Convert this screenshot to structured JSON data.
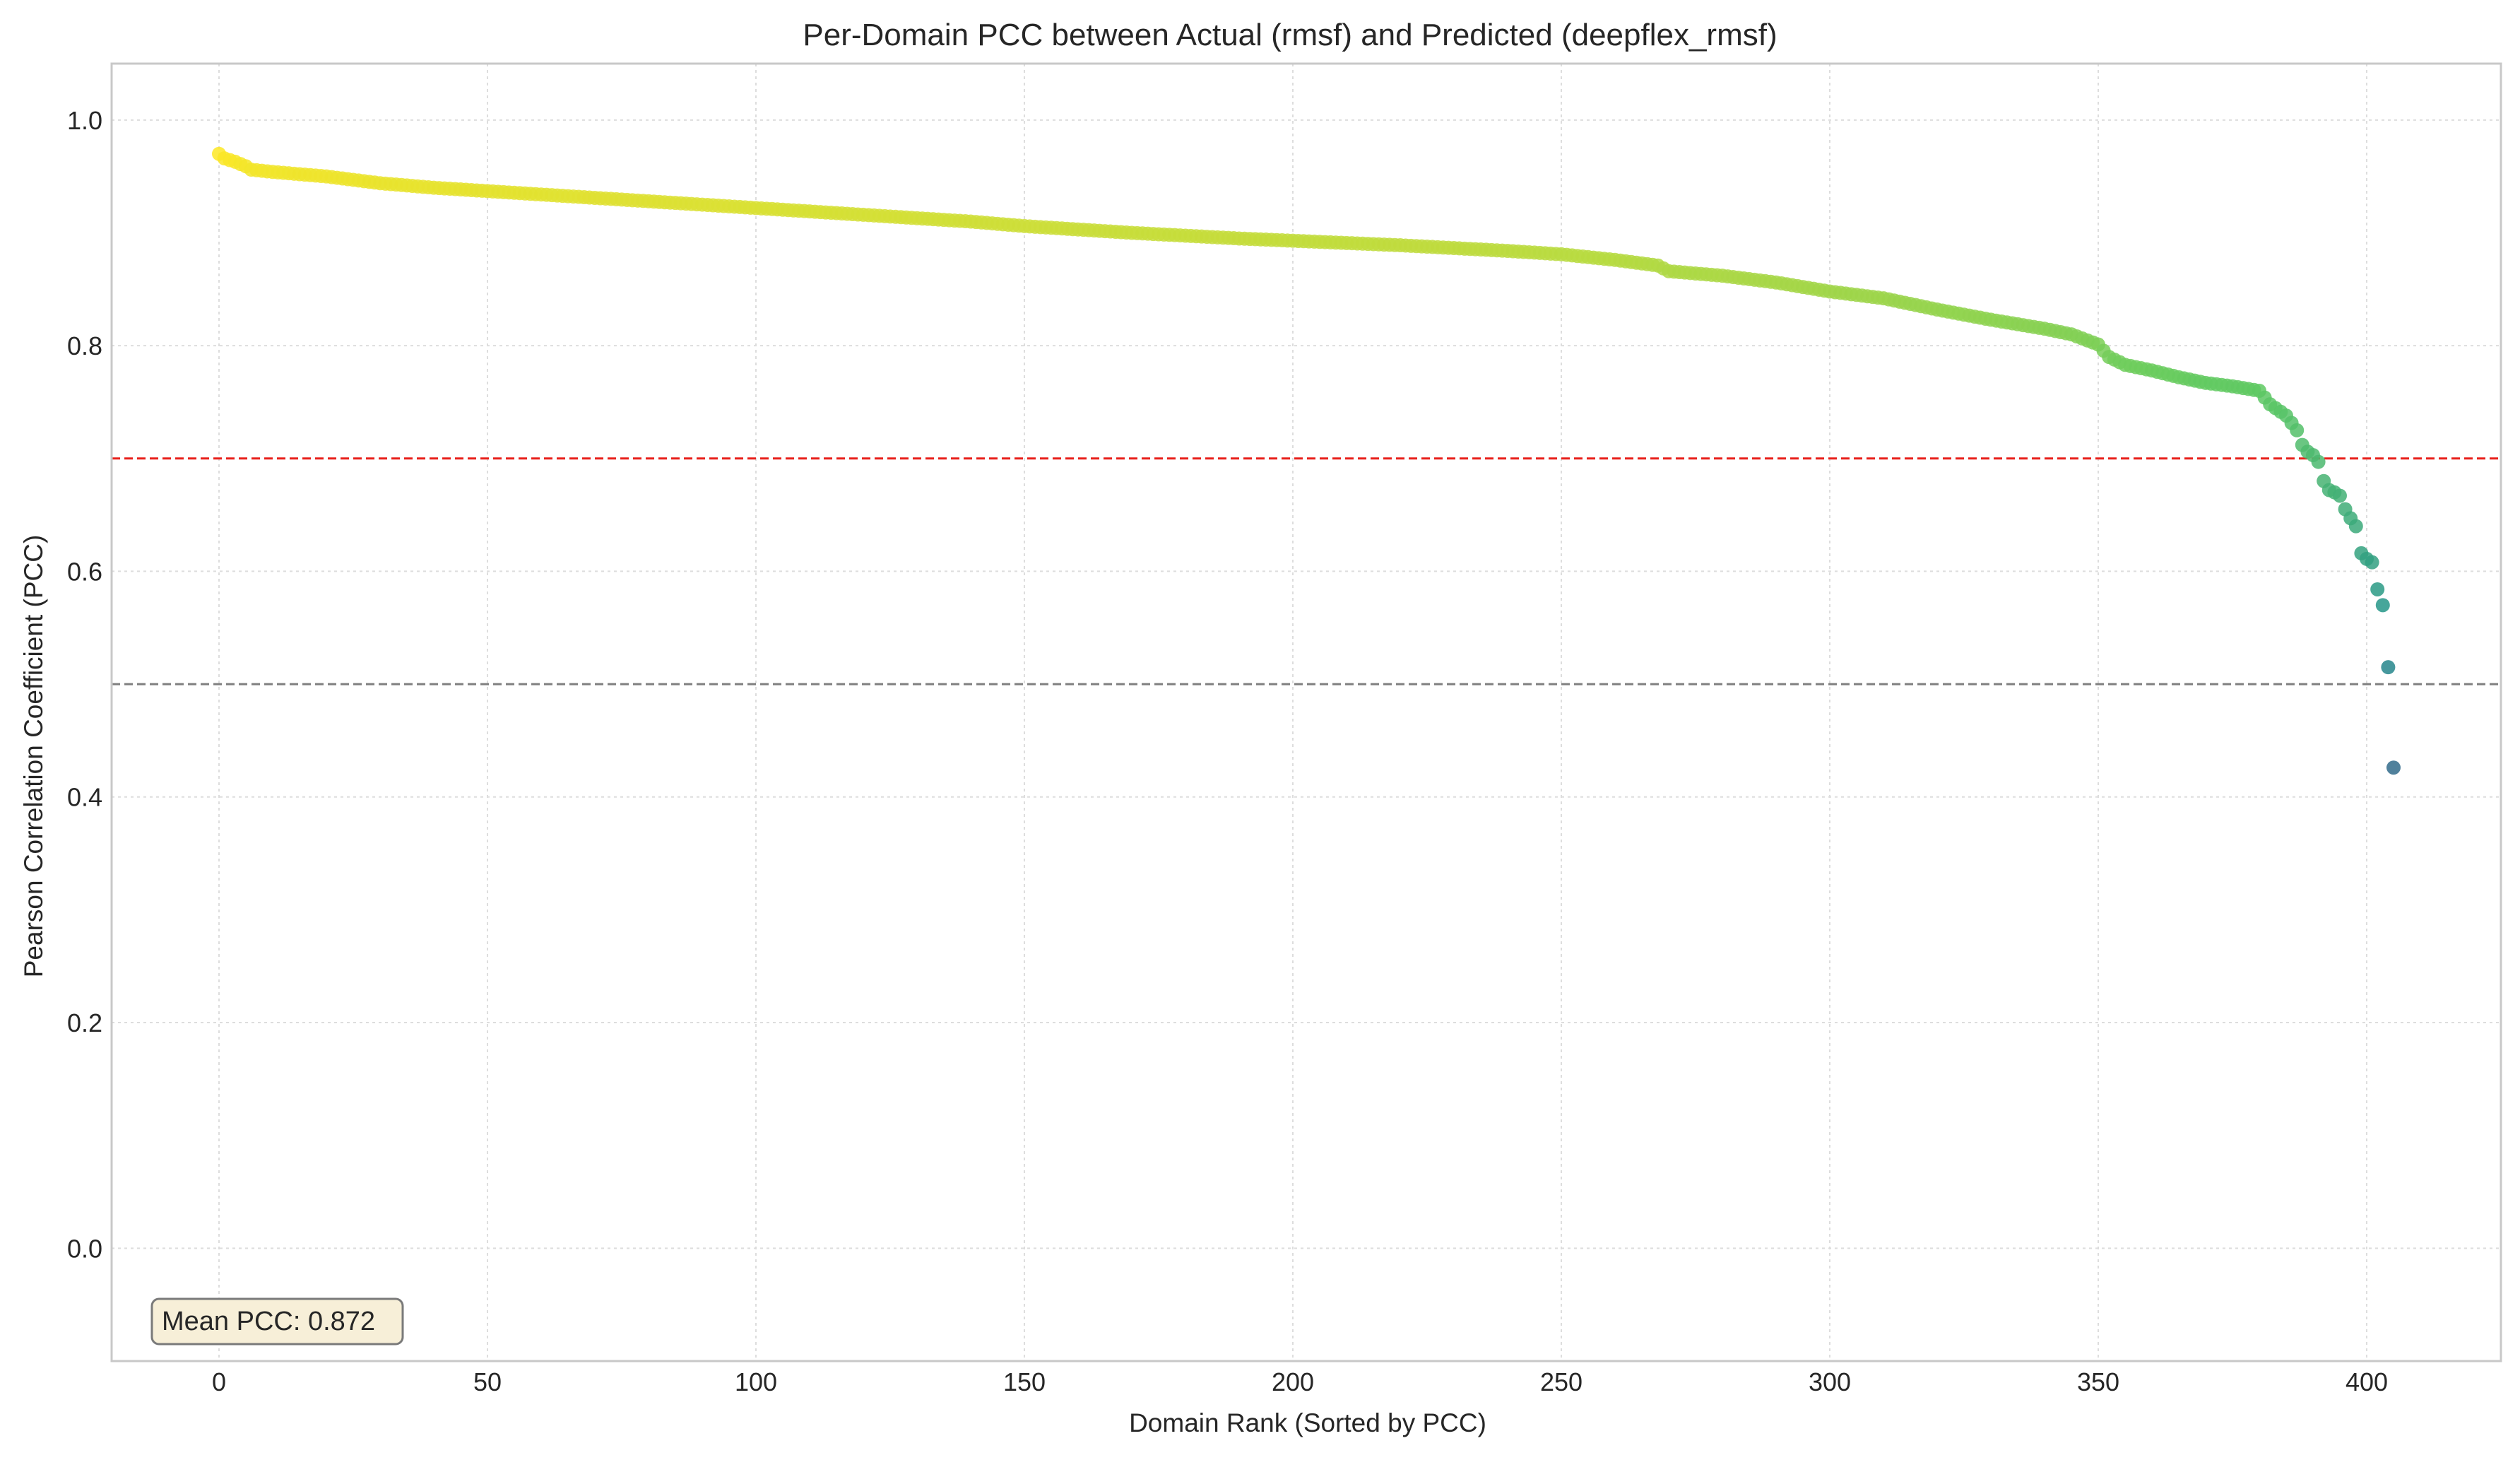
{
  "chart_data": {
    "type": "scatter",
    "title": "Per-Domain PCC between Actual (rmsf) and Predicted (deepflex_rmsf)",
    "xlabel": "Domain Rank (Sorted by PCC)",
    "ylabel": "Pearson Correlation Coefficient (PCC)",
    "xlim": [
      -20,
      425
    ],
    "ylim": [
      -0.1,
      1.05
    ],
    "x_ticks": [
      0,
      50,
      100,
      150,
      200,
      250,
      300,
      350,
      400
    ],
    "y_ticks": [
      0.0,
      0.2,
      0.4,
      0.6,
      0.8,
      1.0
    ],
    "x_tick_labels": [
      "0",
      "50",
      "100",
      "150",
      "200",
      "250",
      "300",
      "350",
      "400"
    ],
    "y_tick_labels": [
      "0.0",
      "0.2",
      "0.4",
      "0.6",
      "0.8",
      "1.0"
    ],
    "grid": true,
    "reference_lines": [
      {
        "y": 0.7,
        "color": "#e8211c",
        "style": "dashed"
      },
      {
        "y": 0.5,
        "color": "#7f7f7f",
        "style": "dashed"
      }
    ],
    "annotation": {
      "text": "Mean PCC: 0.872",
      "position": "bottom-left"
    },
    "colormap": "viridis",
    "n_points": 406,
    "curve_anchors": [
      [
        0,
        0.97
      ],
      [
        1,
        0.966
      ],
      [
        3,
        0.963
      ],
      [
        5,
        0.959
      ],
      [
        6,
        0.956
      ],
      [
        10,
        0.954
      ],
      [
        20,
        0.95
      ],
      [
        30,
        0.944
      ],
      [
        40,
        0.94
      ],
      [
        50,
        0.937
      ],
      [
        60,
        0.934
      ],
      [
        80,
        0.928
      ],
      [
        100,
        0.922
      ],
      [
        120,
        0.916
      ],
      [
        140,
        0.91
      ],
      [
        150,
        0.906
      ],
      [
        170,
        0.9
      ],
      [
        190,
        0.895
      ],
      [
        200,
        0.893
      ],
      [
        220,
        0.889
      ],
      [
        240,
        0.884
      ],
      [
        250,
        0.881
      ],
      [
        260,
        0.876
      ],
      [
        268,
        0.871
      ],
      [
        270,
        0.866
      ],
      [
        280,
        0.862
      ],
      [
        290,
        0.856
      ],
      [
        300,
        0.848
      ],
      [
        310,
        0.842
      ],
      [
        320,
        0.832
      ],
      [
        330,
        0.823
      ],
      [
        340,
        0.815
      ],
      [
        345,
        0.81
      ],
      [
        350,
        0.801
      ],
      [
        352,
        0.79
      ],
      [
        355,
        0.783
      ],
      [
        360,
        0.778
      ],
      [
        365,
        0.772
      ],
      [
        370,
        0.767
      ],
      [
        375,
        0.764
      ],
      [
        380,
        0.76
      ],
      [
        382,
        0.748
      ],
      [
        385,
        0.738
      ],
      [
        387,
        0.725
      ]
    ],
    "tail_points": [
      [
        388,
        0.712
      ],
      [
        389,
        0.706
      ],
      [
        390,
        0.703
      ],
      [
        391,
        0.697
      ],
      [
        392,
        0.68
      ],
      [
        393,
        0.672
      ],
      [
        394,
        0.67
      ],
      [
        395,
        0.667
      ],
      [
        396,
        0.655
      ],
      [
        397,
        0.647
      ],
      [
        398,
        0.64
      ],
      [
        399,
        0.616
      ],
      [
        400,
        0.611
      ],
      [
        401,
        0.608
      ],
      [
        402,
        0.584
      ],
      [
        403,
        0.57
      ],
      [
        404,
        0.515
      ],
      [
        405,
        0.426
      ]
    ],
    "colors": {
      "reference_primary": "#e8211c",
      "reference_secondary": "#7f7f7f",
      "grid": "#dddddd",
      "annotation_fill": "#f7efd8",
      "annotation_border": "#7a7a7a"
    }
  }
}
